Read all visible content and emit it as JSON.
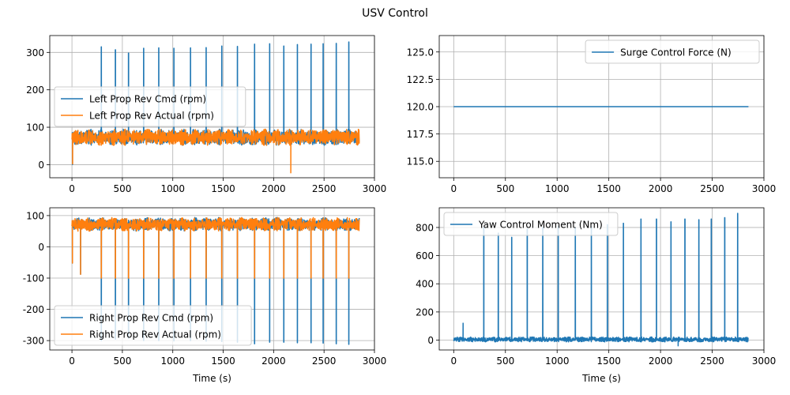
{
  "figure": {
    "title": "USV Control"
  },
  "colors": {
    "series_blue": "#1f77b4",
    "series_orange": "#ff7f0e",
    "grid": "#b0b0b0",
    "frame": "#000000",
    "legend_border": "#cccccc"
  },
  "chart_data": [
    {
      "type": "line",
      "panel": "top-left",
      "xlabel": "",
      "ylabel": "",
      "xlim": [
        -220,
        3000
      ],
      "ylim": [
        -35,
        345
      ],
      "xticks": [
        0,
        500,
        1000,
        1500,
        2000,
        2500,
        3000
      ],
      "yticks": [
        0,
        100,
        200,
        300
      ],
      "grid": true,
      "legend_position": "center-left",
      "spike_times": [
        290,
        430,
        560,
        710,
        860,
        1010,
        1175,
        1330,
        1485,
        1640,
        1810,
        1960,
        2100,
        2235,
        2370,
        2490,
        2620,
        2745
      ],
      "spike_peaks": [
        315,
        307,
        298,
        311,
        312,
        311,
        312,
        313,
        317,
        316,
        322,
        323,
        317,
        321,
        322,
        323,
        324,
        328
      ],
      "series": [
        {
          "name": "Left Prop Rev Cmd (rpm)",
          "color": "#1f77b4",
          "baseline": 73,
          "noise_amplitude": 22,
          "x_range": [
            0,
            2850
          ],
          "note_spikes": "positive"
        },
        {
          "name": "Left Prop Rev Actual (rpm)",
          "color": "#ff7f0e",
          "baseline": 73,
          "noise_amplitude": 22,
          "x_range": [
            0,
            2850
          ],
          "min_value": -22
        }
      ]
    },
    {
      "type": "line",
      "panel": "top-right",
      "xlabel": "",
      "ylabel": "",
      "xlim": [
        -140,
        3000
      ],
      "ylim": [
        113.5,
        126.5
      ],
      "xticks": [
        0,
        500,
        1000,
        1500,
        2000,
        2500,
        3000
      ],
      "yticks": [
        115.0,
        117.5,
        120.0,
        122.5,
        125.0
      ],
      "ytick_labels": [
        "115.0",
        "117.5",
        "120.0",
        "122.5",
        "125.0"
      ],
      "grid": true,
      "legend_position": "top-right",
      "series": [
        {
          "name": "Surge Control Force (N)",
          "color": "#1f77b4",
          "x": [
            0,
            2850
          ],
          "y": [
            120,
            120
          ]
        }
      ]
    },
    {
      "type": "line",
      "panel": "bottom-left",
      "xlabel": "Time (s)",
      "ylabel": "",
      "xlim": [
        -220,
        3000
      ],
      "ylim": [
        -330,
        125
      ],
      "xticks": [
        0,
        500,
        1000,
        1500,
        2000,
        2500,
        3000
      ],
      "yticks": [
        -300,
        -200,
        -100,
        0,
        100
      ],
      "grid": true,
      "legend_position": "lower-left",
      "spike_times": [
        290,
        430,
        560,
        710,
        860,
        1010,
        1175,
        1330,
        1485,
        1640,
        1810,
        1960,
        2100,
        2235,
        2370,
        2490,
        2620,
        2745
      ],
      "spike_troughs": [
        -300,
        -295,
        -292,
        -300,
        -300,
        -301,
        -300,
        -302,
        -303,
        -305,
        -310,
        -305,
        -305,
        -307,
        -307,
        -308,
        -310,
        -312
      ],
      "series": [
        {
          "name": "Right Prop Rev Cmd (rpm)",
          "color": "#1f77b4",
          "baseline": 72,
          "noise_amplitude": 22,
          "x_range": [
            0,
            2850
          ]
        },
        {
          "name": "Right Prop Rev Actual (rpm)",
          "color": "#ff7f0e",
          "baseline": 72,
          "noise_amplitude": 22,
          "x_range": [
            0,
            2850
          ],
          "actual_trough": -100
        }
      ]
    },
    {
      "type": "line",
      "panel": "bottom-right",
      "xlabel": "Time (s)",
      "ylabel": "",
      "xlim": [
        -140,
        3000
      ],
      "ylim": [
        -70,
        940
      ],
      "xticks": [
        0,
        500,
        1000,
        1500,
        2000,
        2500,
        3000
      ],
      "yticks": [
        0,
        200,
        400,
        600,
        800
      ],
      "grid": true,
      "legend_position": "top-left",
      "spike_times": [
        290,
        430,
        560,
        710,
        860,
        1010,
        1175,
        1330,
        1485,
        1640,
        1810,
        1960,
        2100,
        2235,
        2370,
        2490,
        2620,
        2745
      ],
      "spike_peaks": [
        800,
        760,
        730,
        790,
        800,
        810,
        800,
        810,
        820,
        830,
        860,
        860,
        840,
        860,
        855,
        860,
        870,
        900
      ],
      "series": [
        {
          "name": "Yaw Control Moment (Nm)",
          "color": "#1f77b4",
          "baseline": 5,
          "noise_amplitude": 18,
          "x_range": [
            0,
            2850
          ],
          "early_spikes": [
            [
              0,
              75
            ],
            [
              90,
              120
            ]
          ],
          "min_value": -40
        }
      ]
    }
  ]
}
